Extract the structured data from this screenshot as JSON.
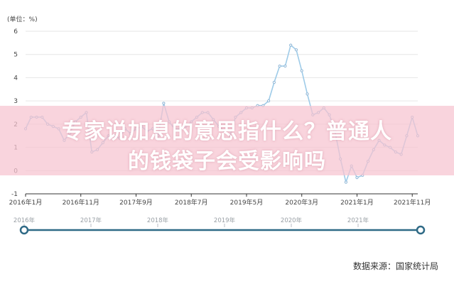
{
  "chart_data": {
    "type": "line",
    "unit_label": "(单位：%)",
    "ylim": [
      -1,
      6
    ],
    "yticks": [
      -1,
      0,
      1,
      2,
      3,
      4,
      5,
      6
    ],
    "grid": true,
    "x_tick_labels": [
      "2016年1月",
      "2016年11月",
      "2017年9月",
      "2018年7月",
      "2019年5月",
      "2020年3月",
      "2021年1月",
      "2021年11月"
    ],
    "start": "2016-01",
    "series": [
      {
        "color": "#9ecbe8",
        "values": [
          1.8,
          2.3,
          2.3,
          2.3,
          2.0,
          1.9,
          1.8,
          1.3,
          1.6,
          2.1,
          2.3,
          2.5,
          0.8,
          0.9,
          1.2,
          1.5,
          1.5,
          1.4,
          1.8,
          1.6,
          1.8,
          1.9,
          1.7,
          1.8,
          1.5,
          2.9,
          2.1,
          1.8,
          1.8,
          1.9,
          2.1,
          2.3,
          2.5,
          2.5,
          2.2,
          1.9,
          1.7,
          1.5,
          2.3,
          2.5,
          2.7,
          2.7,
          2.8,
          2.8,
          3.0,
          3.8,
          4.5,
          4.5,
          5.4,
          5.2,
          4.3,
          3.3,
          2.4,
          2.5,
          2.7,
          2.4,
          1.7,
          0.5,
          -0.5,
          0.2,
          -0.3,
          -0.2,
          0.4,
          0.9,
          1.3,
          1.1,
          1.0,
          0.8,
          0.7,
          1.5,
          2.3,
          1.5
        ]
      }
    ]
  },
  "timeline": {
    "years": [
      "2016年",
      "2017年",
      "2018年",
      "2019年",
      "2020年",
      "2021年"
    ]
  },
  "banner": {
    "line1": "专家说加息的意思指什么？普通人",
    "line2": "的钱袋子会受影响吗"
  },
  "source": "数据来源：国家统计局",
  "colors": {
    "line": "#9ecbe8",
    "marker": "#8fb6d6",
    "timeline": "#2f6a86",
    "grid": "#e6e6e6",
    "axis": "#333333"
  }
}
